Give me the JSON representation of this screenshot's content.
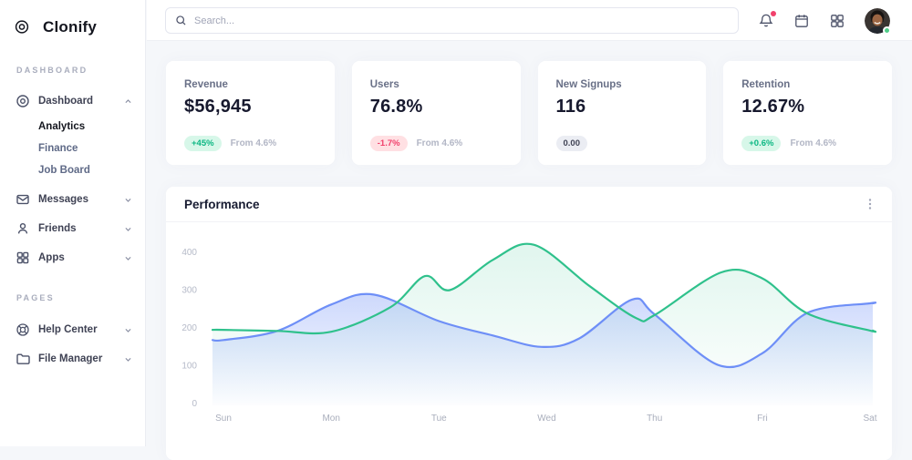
{
  "brand": {
    "name": "Clonify"
  },
  "topbar": {
    "search": {
      "placeholder": "Search..."
    },
    "notifications": {
      "has_unread_dot": true
    },
    "avatar": {
      "status": "online"
    }
  },
  "sidebar": {
    "sections": [
      {
        "label": "DASHBOARD",
        "items": [
          {
            "label": "Dashboard",
            "icon": "disc-icon",
            "expanded": true,
            "children": [
              {
                "label": "Analytics",
                "active": true
              },
              {
                "label": "Finance",
                "active": false
              },
              {
                "label": "Job Board",
                "active": false
              }
            ]
          },
          {
            "label": "Messages",
            "icon": "envelope-icon"
          },
          {
            "label": "Friends",
            "icon": "person-icon"
          },
          {
            "label": "Apps",
            "icon": "grid-icon"
          }
        ]
      },
      {
        "label": "PAGES",
        "items": [
          {
            "label": "Help Center",
            "icon": "lifebuoy-icon"
          },
          {
            "label": "File Manager",
            "icon": "folder-icon"
          }
        ]
      }
    ]
  },
  "stats": [
    {
      "title": "Revenue",
      "value": "$56,945",
      "badge": "+45%",
      "badge_type": "success",
      "note": "From 4.6%"
    },
    {
      "title": "Users",
      "value": "76.8%",
      "badge": "-1.7%",
      "badge_type": "danger",
      "note": "From 4.6%"
    },
    {
      "title": "New Signups",
      "value": "116",
      "badge": "0.00",
      "badge_type": "neutral",
      "note": ""
    },
    {
      "title": "Retention",
      "value": "12.67%",
      "badge": "+0.6%",
      "badge_type": "success",
      "note": "From 4.6%"
    }
  ],
  "performance": {
    "title": "Performance"
  },
  "colors": {
    "accent_green": "#2fc18c",
    "accent_blue": "#6e8ff7",
    "notification_dot": "#f1416c",
    "online_dot": "#50cd89",
    "badge_success_bg": "#d7f7e9",
    "badge_success_text": "#0bb783",
    "badge_danger_bg": "#ffe0e3",
    "badge_danger_text": "#f1416c",
    "badge_neutral_bg": "#ebedf3",
    "badge_neutral_text": "#3f4254"
  },
  "chart_data": {
    "type": "area",
    "title": "Performance",
    "categories": [
      "Sun",
      "Mon",
      "Tue",
      "Wed",
      "Thu",
      "Fri",
      "Sat"
    ],
    "y_ticks": [
      0,
      100,
      200,
      300,
      400
    ],
    "y_range": [
      0,
      440
    ],
    "grid": false,
    "legend": false,
    "series": [
      {
        "name": "green-series",
        "color": "#2fc18c",
        "fill_opacity_top": 0.15,
        "points_day_value": [
          [
            0,
            195
          ],
          [
            0.5,
            192
          ],
          [
            1,
            190
          ],
          [
            1.55,
            255
          ],
          [
            1.87,
            337
          ],
          [
            2.1,
            300
          ],
          [
            2.5,
            380
          ],
          [
            2.88,
            420
          ],
          [
            3.4,
            310
          ],
          [
            3.83,
            226
          ],
          [
            4,
            234
          ],
          [
            4.62,
            347
          ],
          [
            5,
            331
          ],
          [
            5.42,
            238
          ],
          [
            6,
            193
          ]
        ]
      },
      {
        "name": "blue-series",
        "color": "#6e8ff7",
        "fill_opacity_top": 0.5,
        "points_day_value": [
          [
            0,
            168
          ],
          [
            0.5,
            192
          ],
          [
            1,
            262
          ],
          [
            1.4,
            288
          ],
          [
            2,
            218
          ],
          [
            2.5,
            180
          ],
          [
            2.95,
            150
          ],
          [
            3.3,
            172
          ],
          [
            3.79,
            275
          ],
          [
            4,
            236
          ],
          [
            4.59,
            102
          ],
          [
            5,
            133
          ],
          [
            5.42,
            240
          ],
          [
            6,
            265
          ]
        ]
      }
    ]
  }
}
